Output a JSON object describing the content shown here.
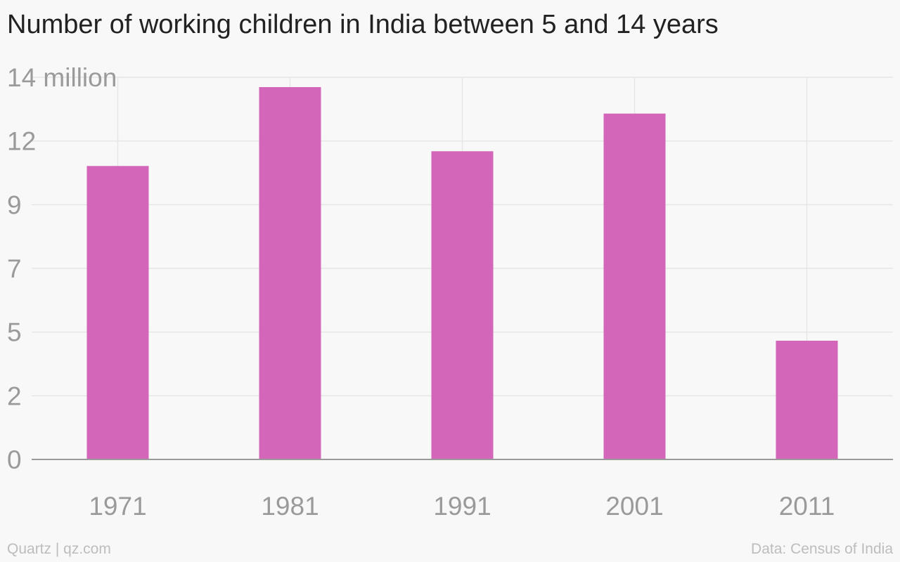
{
  "chart_data": {
    "type": "bar",
    "title": "Number of working children in India between 5 and 14 years",
    "xlabel": "",
    "ylabel": "",
    "categories": [
      "1971",
      "1981",
      "1991",
      "2001",
      "2011"
    ],
    "values": [
      10.75,
      13.64,
      11.29,
      12.67,
      4.35
    ],
    "ylim": [
      0,
      14
    ],
    "yticks": [
      {
        "value": 0,
        "label": "0"
      },
      {
        "value": 2.333,
        "label": "2"
      },
      {
        "value": 4.667,
        "label": "5"
      },
      {
        "value": 7,
        "label": "7"
      },
      {
        "value": 9.333,
        "label": "9"
      },
      {
        "value": 11.667,
        "label": "12"
      },
      {
        "value": 14,
        "label": "14 million"
      }
    ],
    "grid": true,
    "colors": {
      "bar": "#d366b9",
      "grid": "#e6e6e6",
      "axis": "#9a9a9a",
      "tick_label": "#9a9a9a"
    }
  },
  "footer": {
    "source_left": "Quartz | qz.com",
    "source_right": "Data: Census of India"
  }
}
